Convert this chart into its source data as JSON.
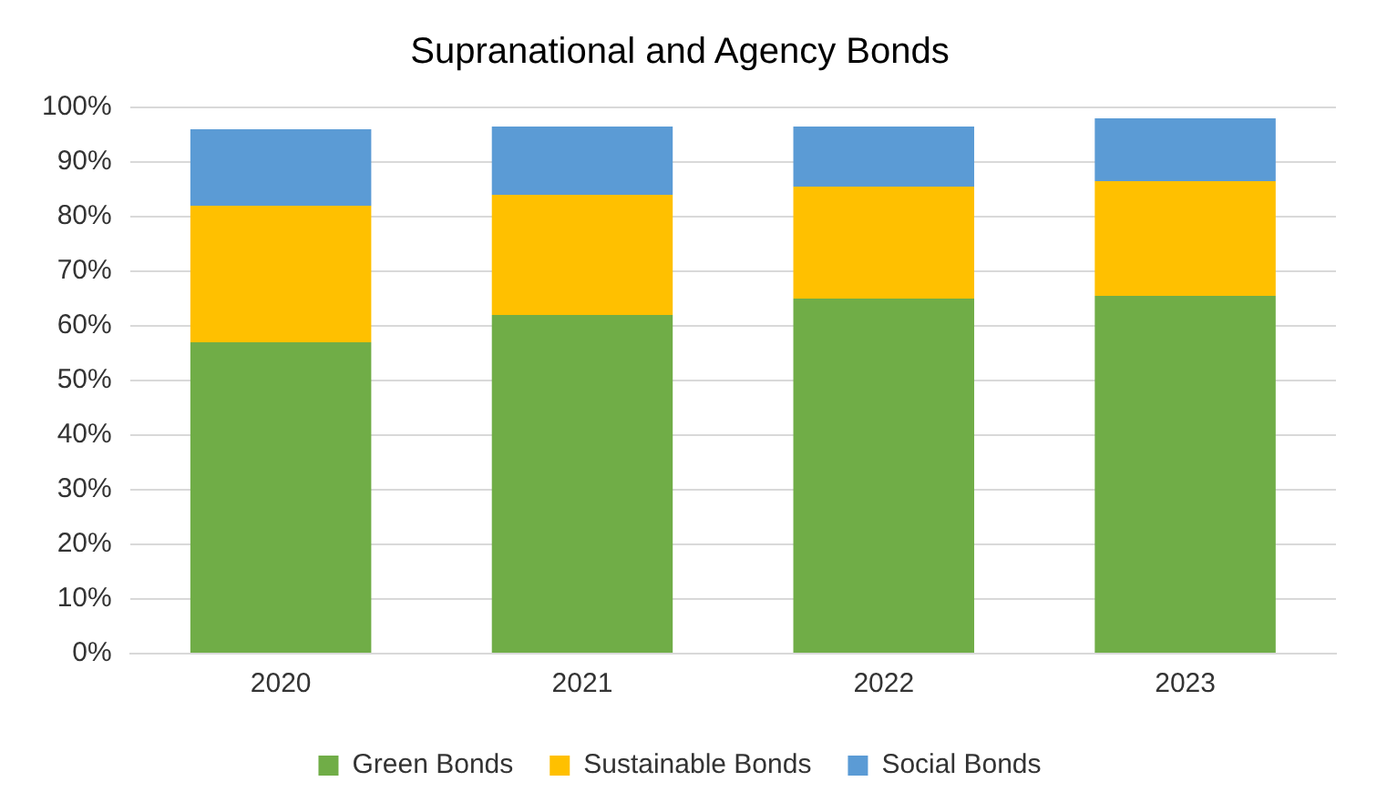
{
  "chart_data": {
    "type": "bar",
    "title": "Supranational and Agency Bonds",
    "stacked": true,
    "categories": [
      "2020",
      "2021",
      "2022",
      "2023"
    ],
    "series": [
      {
        "name": "Green Bonds",
        "color": "#70ad47",
        "values": [
          57,
          62,
          65,
          65.5
        ]
      },
      {
        "name": "Sustainable Bonds",
        "color": "#ffc000",
        "values": [
          25,
          22,
          20.5,
          21
        ]
      },
      {
        "name": "Social Bonds",
        "color": "#5b9bd5",
        "values": [
          14,
          12.5,
          11,
          11.5
        ]
      }
    ],
    "ylim": [
      0,
      100
    ],
    "yticks": [
      {
        "value": 0,
        "label": "0%"
      },
      {
        "value": 10,
        "label": "10%"
      },
      {
        "value": 20,
        "label": "20%"
      },
      {
        "value": 30,
        "label": "30%"
      },
      {
        "value": 40,
        "label": "40%"
      },
      {
        "value": 50,
        "label": "50%"
      },
      {
        "value": 60,
        "label": "60%"
      },
      {
        "value": 70,
        "label": "70%"
      },
      {
        "value": 80,
        "label": "80%"
      },
      {
        "value": 90,
        "label": "90%"
      },
      {
        "value": 100,
        "label": "100%"
      }
    ],
    "grid": "y",
    "legend": "bottom"
  }
}
